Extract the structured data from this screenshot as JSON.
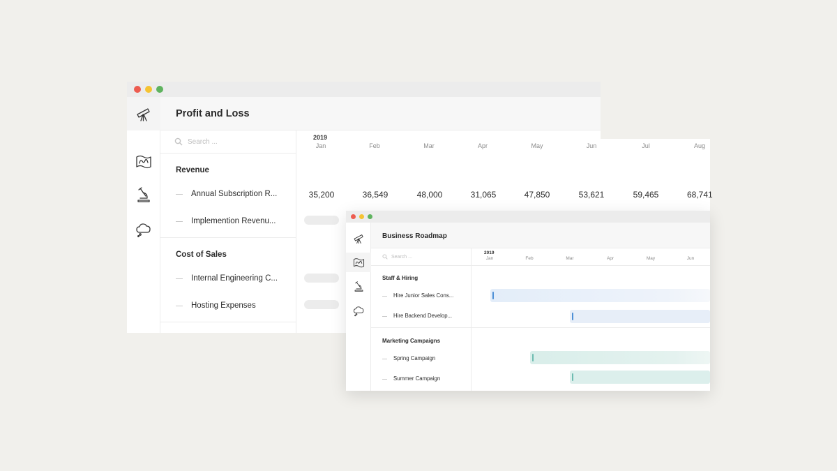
{
  "profit_loss": {
    "title": "Profit and Loss",
    "search_placeholder": "Search ...",
    "year": "2019",
    "months": [
      "Jan",
      "Feb",
      "Mar",
      "Apr",
      "May",
      "Jun",
      "Jul",
      "Aug"
    ],
    "sections": [
      {
        "label": "Revenue",
        "rows": [
          {
            "label": "Annual Subscription R...",
            "values": [
              "35,200",
              "36,549",
              "48,000",
              "31,065",
              "47,850",
              "53,621",
              "59,465",
              "68,741"
            ]
          },
          {
            "label": "Implemention Revenu..."
          }
        ]
      },
      {
        "label": "Cost of Sales",
        "rows": [
          {
            "label": "Internal Engineering C..."
          },
          {
            "label": "Hosting Expenses"
          }
        ]
      }
    ],
    "colors": {
      "dot_red": "#ed5c50",
      "dot_yellow": "#f5c332",
      "dot_green": "#5fb35f"
    }
  },
  "roadmap": {
    "title": "Business Roadmap",
    "search_placeholder": "Search ...",
    "year": "2019",
    "months": [
      "Jan",
      "Feb",
      "Mar",
      "Apr",
      "May",
      "Jun"
    ],
    "sections": [
      {
        "label": "Staff & Hiring",
        "rows": [
          {
            "label": "Hire Junior Sales Cons...",
            "start_month": "Jan"
          },
          {
            "label": "Hire Backend Develop...",
            "start_month": "Mar"
          }
        ]
      },
      {
        "label": "Marketing Campaigns",
        "rows": [
          {
            "label": "Spring Campaign",
            "start_month": "Feb"
          },
          {
            "label": "Summer Campaign",
            "start_month": "Mar"
          }
        ]
      }
    ],
    "colors": {
      "staff_bar": "#e6eef9",
      "staff_cap": "#4d8fd6",
      "marketing_bar": "#dcefec",
      "marketing_cap": "#6ebcb1"
    }
  }
}
